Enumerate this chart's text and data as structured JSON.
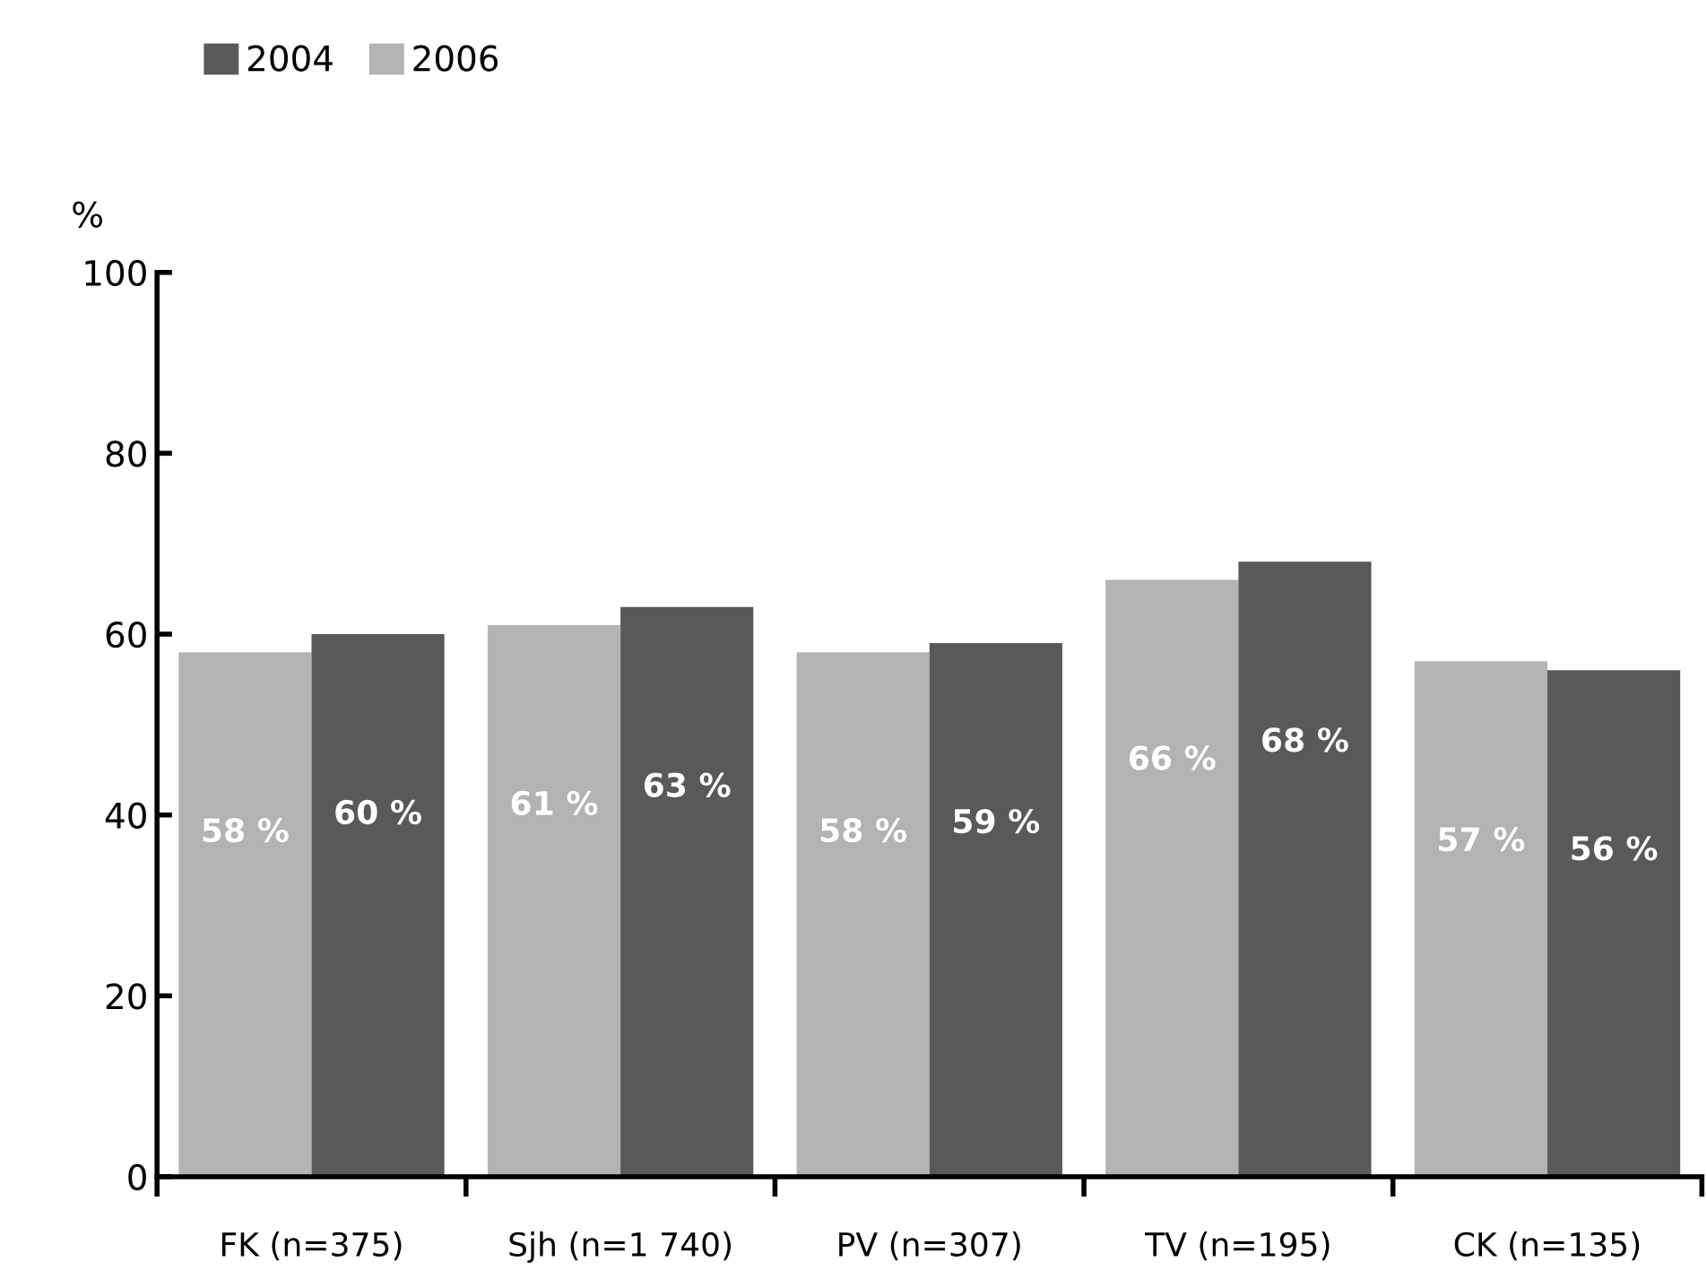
{
  "chart_data": {
    "type": "bar",
    "ylabel": "%",
    "categories": [
      "FK (n=375)",
      "Sjh (n=1 740)",
      "PV (n=307)",
      "TV (n=195)",
      "CK (n=135)"
    ],
    "series": [
      {
        "name": "2006",
        "color": "#b3b3b3",
        "values": [
          58,
          61,
          58,
          66,
          57
        ],
        "value_labels": [
          "58 %",
          "61 %",
          "58 %",
          "66 %",
          "57 %"
        ]
      },
      {
        "name": "2004",
        "color": "#58595b",
        "values": [
          60,
          63,
          59,
          68,
          56
        ],
        "value_labels": [
          "60 %",
          "63 %",
          "59 %",
          "68 %",
          "56 %"
        ]
      }
    ],
    "ylim": [
      0,
      100
    ],
    "yticks": [
      0,
      20,
      40,
      60,
      80,
      100
    ],
    "grid": false,
    "legend": "top left"
  }
}
